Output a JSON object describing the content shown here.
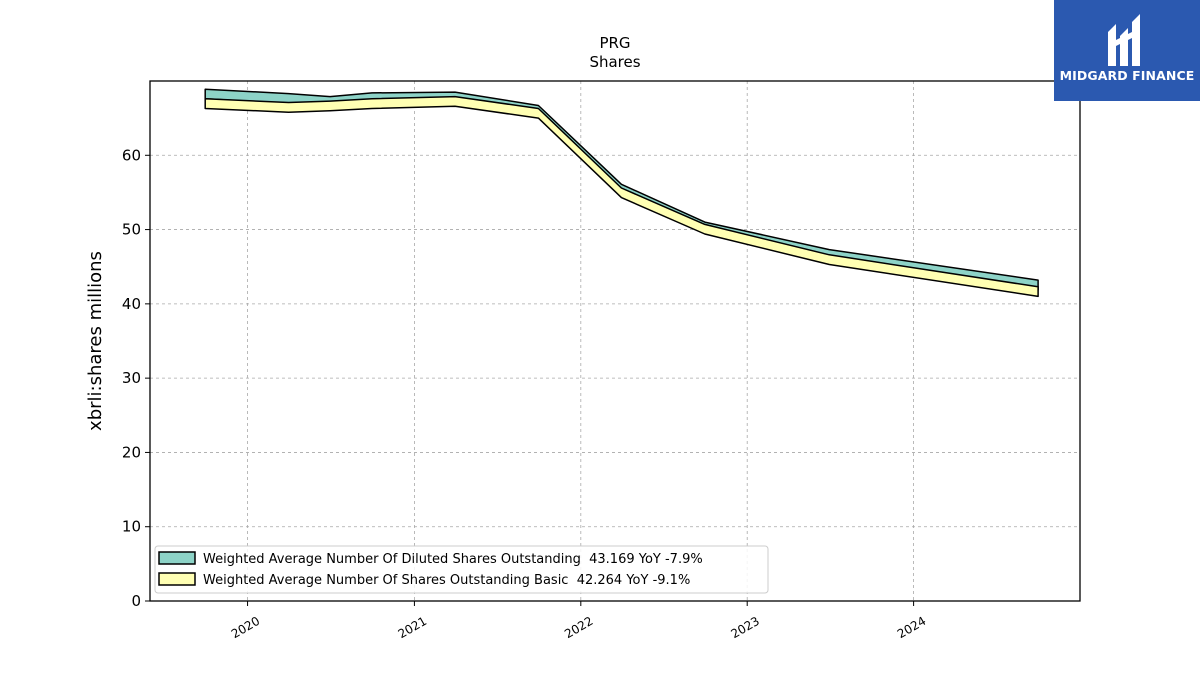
{
  "brand": {
    "name": "MIDGARD FINANCE",
    "bg_color": "#2b59b0"
  },
  "chart_data": {
    "type": "area",
    "title": "PRG",
    "subtitle": "Shares",
    "ylabel": "xbrli:shares millions",
    "xlabel": "",
    "ylim": [
      0,
      70
    ],
    "yticks": [
      0,
      10,
      20,
      30,
      40,
      50,
      60
    ],
    "xlim": [
      "2019-06-01",
      "2024-12-31"
    ],
    "xticks": [
      "2020",
      "2021",
      "2022",
      "2023",
      "2024"
    ],
    "grid": true,
    "legend_position": "lower-left",
    "x": [
      "2019-09-30",
      "2020-03-31",
      "2020-06-30",
      "2020-09-30",
      "2021-03-31",
      "2021-09-30",
      "2022-03-31",
      "2022-09-30",
      "2023-06-30",
      "2024-09-30"
    ],
    "series": [
      {
        "name": "Weighted Average Number Of Diluted Shares Outstanding",
        "legend": "Weighted Average Number Of Diluted Shares Outstanding  43.169 YoY -7.9%",
        "color": "#8dd3c7",
        "values": [
          68.9,
          68.3,
          67.9,
          68.4,
          68.5,
          66.7,
          56.1,
          51.0,
          47.3,
          43.2
        ]
      },
      {
        "name": "Weighted Average Number Of Shares Outstanding Basic",
        "legend": "Weighted Average Number Of Shares Outstanding Basic  42.264 YoY -9.1%",
        "color": "#ffffb3",
        "values": [
          67.6,
          67.1,
          67.3,
          67.6,
          67.9,
          66.3,
          55.6,
          50.7,
          46.6,
          42.3
        ]
      }
    ]
  }
}
